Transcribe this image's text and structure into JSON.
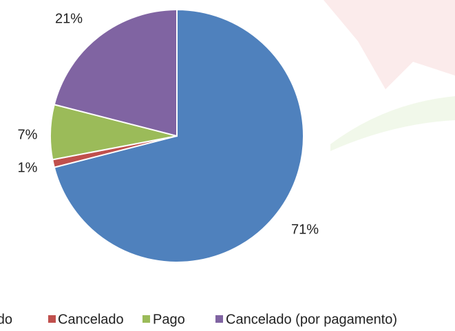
{
  "chart_data": {
    "type": "pie",
    "categories": [
      "do",
      "Cancelado",
      "Pago",
      "Cancelado (por pagamento)"
    ],
    "values": [
      71,
      1,
      7,
      21
    ],
    "value_labels": [
      "71%",
      "1%",
      "7%",
      "21%"
    ],
    "colors": [
      "#4f81bd",
      "#c0504d",
      "#9bbb59",
      "#8064a2"
    ],
    "legend": "bottom"
  }
}
